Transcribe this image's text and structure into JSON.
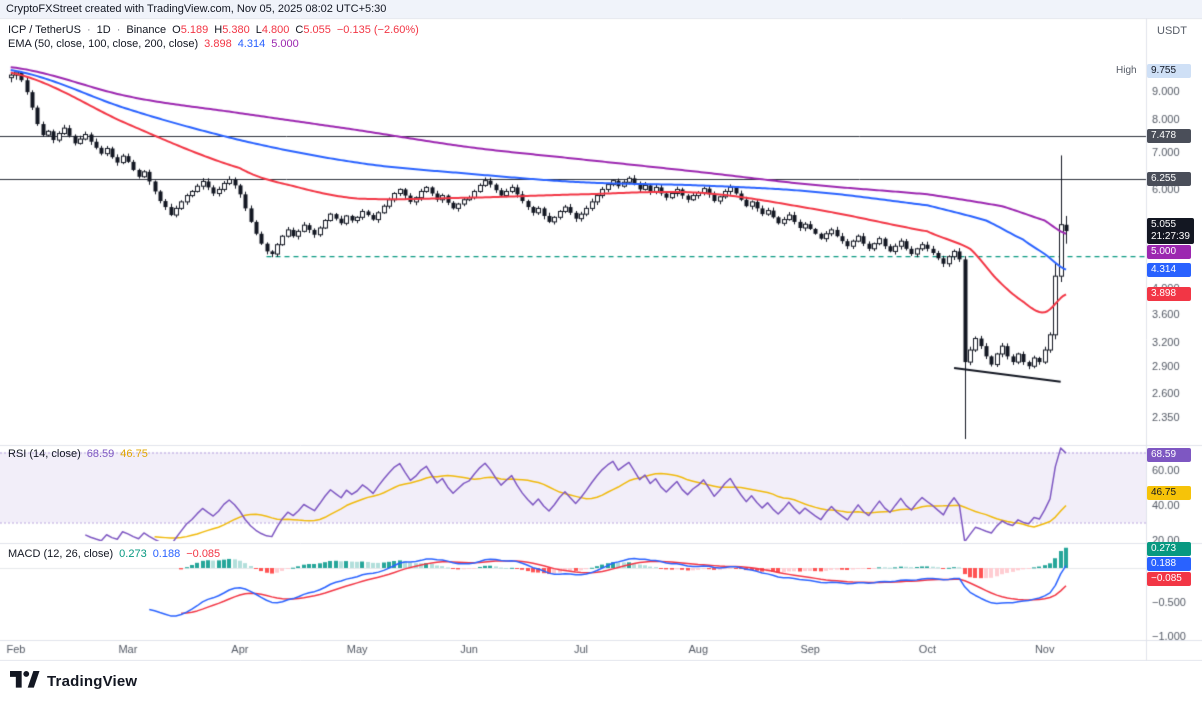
{
  "attribution": {
    "text": "CryptoFXStreet created with TradingView.com, Nov 05, 2025 08:02 UTC+5:30"
  },
  "price_axis": {
    "currency": "USDT"
  },
  "symbol_legend": {
    "title": "ICP / TetherUS",
    "sep": "·",
    "timeframe": "1D",
    "exchange": "Binance",
    "ohlc": [
      {
        "label": "O",
        "value": "5.189"
      },
      {
        "label": "H",
        "value": "5.380"
      },
      {
        "label": "L",
        "value": "4.800"
      },
      {
        "label": "C",
        "value": "5.055"
      }
    ],
    "change": "−0.135 (−2.60%)",
    "change_color": "#F23645"
  },
  "ema_legend": {
    "title": "EMA (50, close, 100, close, 200, close)",
    "values": [
      {
        "text": "3.898",
        "color": "#F23645"
      },
      {
        "text": "4.314",
        "color": "#2962FF"
      },
      {
        "text": "5.000",
        "color": "#9C27B0"
      }
    ]
  },
  "rsi_legend": {
    "title": "RSI (14, close)",
    "values": [
      {
        "text": "68.59",
        "color": "#7E57C2"
      },
      {
        "text": "46.75",
        "color": "#E0A500"
      }
    ]
  },
  "macd_legend": {
    "title": "MACD (12, 26, close)",
    "values": [
      {
        "text": "0.273",
        "color": "#089981"
      },
      {
        "text": "0.188",
        "color": "#2962FF"
      },
      {
        "text": "−0.085",
        "color": "#F23645"
      }
    ]
  },
  "badges": [
    {
      "id": "high",
      "panel": "price",
      "value": 9.755,
      "text": "9.755",
      "prefix": "High",
      "bg": "#CFE0F6",
      "fg": "#131722"
    },
    {
      "id": "level-7478",
      "panel": "price",
      "value": 7.478,
      "text": "7.478",
      "bg": "#4A4E59",
      "fg": "#FFFFFF"
    },
    {
      "id": "level-6255",
      "panel": "price",
      "value": 6.255,
      "text": "6.255",
      "bg": "#4A4E59",
      "fg": "#FFFFFF"
    },
    {
      "id": "last-price",
      "panel": "price",
      "value": 5.055,
      "text": "5.055",
      "sub": "21:27:39",
      "bg": "#131722",
      "fg": "#FFFFFF"
    },
    {
      "id": "ema200",
      "panel": "price",
      "value": 5.0,
      "text": "5.000",
      "bg": "#9C27B0",
      "fg": "#FFFFFF"
    },
    {
      "id": "ema100",
      "panel": "price",
      "value": 4.314,
      "text": "4.314",
      "bg": "#2962FF",
      "fg": "#FFFFFF"
    },
    {
      "id": "ema50",
      "panel": "price",
      "value": 3.898,
      "text": "3.898",
      "bg": "#F23645",
      "fg": "#FFFFFF"
    },
    {
      "id": "rsi-value",
      "panel": "rsi",
      "value": 68.59,
      "text": "68.59",
      "bg": "#7E57C2",
      "fg": "#FFFFFF"
    },
    {
      "id": "rsi-ma",
      "panel": "rsi",
      "value": 46.75,
      "text": "46.75",
      "bg": "#F6C309",
      "fg": "#131722"
    },
    {
      "id": "macd-hist",
      "panel": "macd",
      "value": 0.273,
      "text": "0.273",
      "bg": "#089981",
      "fg": "#FFFFFF"
    },
    {
      "id": "macd-line",
      "panel": "macd",
      "value": 0.188,
      "text": "0.188",
      "bg": "#2962FF",
      "fg": "#FFFFFF"
    },
    {
      "id": "macd-signal",
      "panel": "macd",
      "value": -0.085,
      "text": "−0.085",
      "bg": "#F23645",
      "fg": "#FFFFFF"
    }
  ],
  "footer": {
    "brand": "TradingView"
  },
  "chart_data": {
    "type": "candlestick+indicators",
    "symbol": "ICP/TetherUS",
    "timeframe": "1D",
    "exchange": "Binance",
    "scale": "log",
    "x_axis": {
      "months": [
        {
          "label": "Feb",
          "index": 0
        },
        {
          "label": "Mar",
          "index": 22
        },
        {
          "label": "Apr",
          "index": 43
        },
        {
          "label": "May",
          "index": 65
        },
        {
          "label": "Jun",
          "index": 86
        },
        {
          "label": "Jul",
          "index": 107
        },
        {
          "label": "Aug",
          "index": 129
        },
        {
          "label": "Sep",
          "index": 150
        },
        {
          "label": "Oct",
          "index": 172
        },
        {
          "label": "Nov",
          "index": 194
        }
      ]
    },
    "price_panel": {
      "period_high": 9.755,
      "last": {
        "o": 5.189,
        "h": 5.38,
        "l": 4.8,
        "c": 5.055,
        "change": -0.135,
        "change_pct": -2.6
      },
      "y_ticks": [
        {
          "label": "9.000",
          "value": 9.0
        },
        {
          "label": "8.000",
          "value": 8.0
        },
        {
          "label": "7.000",
          "value": 7.0
        },
        {
          "label": "6.000",
          "value": 6.0
        },
        {
          "label": "4.000",
          "value": 4.0
        },
        {
          "label": "3.600",
          "value": 3.6
        },
        {
          "label": "3.200",
          "value": 3.2
        },
        {
          "label": "2.900",
          "value": 2.9
        },
        {
          "label": "2.600",
          "value": 2.6
        },
        {
          "label": "2.350",
          "value": 2.35
        }
      ],
      "levels": [
        {
          "value": 7.478,
          "color": "#2A2E39"
        },
        {
          "value": 6.255,
          "color": "#2A2E39"
        }
      ],
      "support_line": {
        "value": 4.55,
        "start_index": 48,
        "color": "#089981",
        "style": "dashed"
      },
      "trendline": {
        "from": [
          177,
          2.88
        ],
        "to": [
          197,
          2.72
        ],
        "color": "#131722"
      },
      "candle_up": "#FFFFFF",
      "candle_down": "#131722",
      "candle_border": "#131722",
      "closes": [
        9.6,
        9.72,
        9.4,
        8.95,
        8.4,
        7.85,
        7.5,
        7.62,
        7.35,
        7.55,
        7.72,
        7.48,
        7.25,
        7.38,
        7.52,
        7.3,
        7.12,
        6.95,
        7.1,
        6.85,
        6.7,
        6.88,
        6.72,
        6.5,
        6.32,
        6.45,
        6.2,
        5.95,
        5.72,
        5.58,
        5.4,
        5.55,
        5.7,
        5.85,
        5.95,
        6.08,
        6.2,
        6.05,
        5.9,
        6.0,
        6.15,
        6.25,
        6.1,
        5.88,
        5.55,
        5.25,
        5.0,
        4.8,
        4.65,
        4.6,
        4.78,
        4.95,
        5.08,
        4.95,
        5.05,
        5.18,
        5.08,
        4.98,
        5.12,
        5.28,
        5.42,
        5.32,
        5.22,
        5.38,
        5.28,
        5.35,
        5.48,
        5.4,
        5.3,
        5.45,
        5.6,
        5.75,
        5.9,
        6.0,
        5.85,
        5.7,
        5.8,
        5.95,
        6.05,
        5.9,
        5.75,
        5.85,
        5.68,
        5.55,
        5.65,
        5.75,
        5.8,
        5.95,
        6.1,
        6.22,
        6.12,
        5.98,
        5.85,
        5.95,
        6.05,
        5.88,
        5.72,
        5.58,
        5.45,
        5.55,
        5.38,
        5.25,
        5.35,
        5.48,
        5.58,
        5.45,
        5.32,
        5.42,
        5.55,
        5.7,
        5.85,
        6.0,
        6.12,
        6.22,
        6.08,
        6.18,
        6.28,
        6.15,
        6.0,
        6.1,
        5.95,
        6.05,
        5.9,
        5.8,
        5.9,
        6.0,
        5.85,
        5.75,
        5.85,
        5.92,
        6.02,
        5.88,
        5.72,
        5.82,
        5.95,
        6.05,
        5.9,
        5.75,
        5.6,
        5.7,
        5.55,
        5.42,
        5.5,
        5.35,
        5.22,
        5.3,
        5.4,
        5.25,
        5.12,
        5.2,
        5.1,
        5.0,
        4.9,
        5.0,
        5.08,
        4.95,
        4.85,
        4.75,
        4.85,
        4.95,
        4.8,
        4.7,
        4.8,
        4.9,
        4.75,
        4.65,
        4.75,
        4.85,
        4.7,
        4.6,
        4.7,
        4.78,
        4.7,
        4.62,
        4.52,
        4.42,
        4.55,
        4.65,
        4.5,
        2.95,
        3.1,
        3.25,
        3.15,
        3.02,
        2.92,
        3.05,
        3.15,
        3.02,
        2.95,
        3.05,
        2.95,
        2.9,
        3.0,
        2.95,
        3.1,
        3.3,
        4.2,
        5.19,
        5.055
      ],
      "candle_overrides": {
        "0": {
          "o": 9.5,
          "h": 9.68,
          "l": 9.32,
          "c": 9.6
        },
        "1": {
          "o": 9.6,
          "h": 9.755,
          "l": 9.42,
          "c": 9.72
        },
        "179": {
          "o": 4.5,
          "h": 4.56,
          "l": 2.15,
          "c": 2.95
        },
        "196": {
          "o": 3.3,
          "h": 4.45,
          "l": 3.24,
          "c": 4.2
        },
        "197": {
          "o": 4.2,
          "h": 6.9,
          "l": 4.1,
          "c": 5.19
        },
        "198": {
          "o": 5.189,
          "h": 5.38,
          "l": 4.8,
          "c": 5.055
        }
      },
      "emas": [
        {
          "name": "EMA 50",
          "color": "#F23645",
          "current": 3.898,
          "anchors": [
            [
              0,
              9.7
            ],
            [
              22,
              7.85
            ],
            [
              43,
              6.55
            ],
            [
              54,
              6.05
            ],
            [
              65,
              5.78
            ],
            [
              86,
              5.8
            ],
            [
              107,
              5.88
            ],
            [
              129,
              5.92
            ],
            [
              150,
              5.55
            ],
            [
              172,
              5.05
            ],
            [
              180,
              4.7
            ],
            [
              185,
              4.15
            ],
            [
              190,
              3.78
            ],
            [
              194,
              3.62
            ],
            [
              198,
              3.898
            ]
          ]
        },
        {
          "name": "EMA 100",
          "color": "#2962FF",
          "current": 4.314,
          "anchors": [
            [
              0,
              9.8
            ],
            [
              22,
              8.35
            ],
            [
              43,
              7.35
            ],
            [
              65,
              6.7
            ],
            [
              86,
              6.4
            ],
            [
              107,
              6.18
            ],
            [
              129,
              6.1
            ],
            [
              150,
              5.95
            ],
            [
              172,
              5.62
            ],
            [
              183,
              5.28
            ],
            [
              190,
              4.88
            ],
            [
              194,
              4.6
            ],
            [
              198,
              4.314
            ]
          ]
        },
        {
          "name": "EMA 200",
          "color": "#9C27B0",
          "current": 5.0,
          "anchors": [
            [
              0,
              9.92
            ],
            [
              22,
              8.8
            ],
            [
              43,
              8.21
            ],
            [
              65,
              7.66
            ],
            [
              86,
              7.14
            ],
            [
              107,
              6.79
            ],
            [
              129,
              6.45
            ],
            [
              150,
              6.12
            ],
            [
              172,
              5.88
            ],
            [
              186,
              5.6
            ],
            [
              194,
              5.28
            ],
            [
              198,
              5.0
            ]
          ]
        }
      ]
    },
    "rsi_panel": {
      "period": 14,
      "ma_period": 14,
      "current": 68.59,
      "ma_current": 46.75,
      "bands": [
        70,
        30
      ],
      "band_fill": "rgba(126,87,194,0.10)",
      "line_color": "#7E57C2",
      "ma_color": "#F0B90B",
      "y_ticks": [
        {
          "label": "60.00",
          "value": 60
        },
        {
          "label": "40.00",
          "value": 40
        },
        {
          "label": "20.00",
          "value": 20
        }
      ]
    },
    "macd_panel": {
      "fast": 12,
      "slow": 26,
      "signal": 9,
      "current_hist": 0.273,
      "current_macd": 0.188,
      "current_signal": -0.085,
      "macd_color": "#2962FF",
      "signal_color": "#F23645",
      "hist_colors": {
        "up_grow": "#26A69A",
        "up_fall": "#B2DFDB",
        "down_grow": "#FF5252",
        "down_fade": "#FFCDD2"
      },
      "y_ticks": [
        {
          "label": "−0.500",
          "value": -0.5
        },
        {
          "label": "−1.000",
          "value": -1.0
        }
      ]
    }
  }
}
